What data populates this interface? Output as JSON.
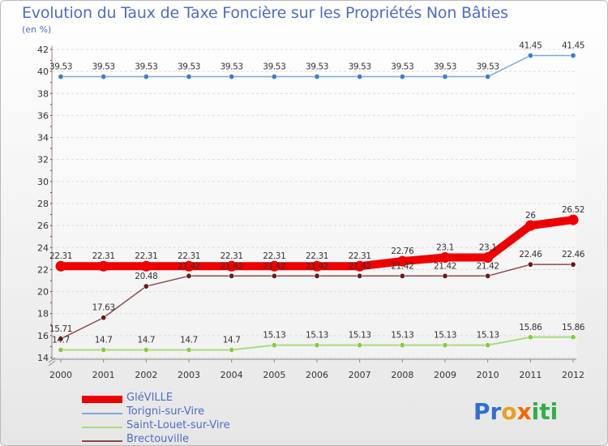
{
  "title": "Evolution du Taux de Taxe Foncière sur les Propriétés Non Bâties",
  "subtitle": "(en %)",
  "logo": {
    "letters": [
      "P",
      "r",
      "o",
      "x",
      "i",
      "t",
      "i"
    ],
    "colors": [
      "#2f6fd0",
      "#2f6fd0",
      "#e8a020",
      "#f06a00",
      "#2fb04a",
      "#2fb04a",
      "#2fb04a"
    ]
  },
  "chart_data": {
    "type": "line",
    "categories": [
      "2000",
      "2001",
      "2002",
      "2003",
      "2004",
      "2005",
      "2006",
      "2007",
      "2008",
      "2009",
      "2010",
      "2011",
      "2012"
    ],
    "ylim": [
      14,
      42
    ],
    "yticks": [
      14,
      16,
      18,
      20,
      22,
      24,
      26,
      28,
      30,
      32,
      34,
      36,
      38,
      40,
      42
    ],
    "xlabel": "",
    "ylabel": "(en %)",
    "grid": "horizontal",
    "series": [
      {
        "name": "GléVILLE",
        "color": "#ee0000",
        "markerColor": "#ee0000",
        "width": 10,
        "values": [
          22.31,
          22.31,
          22.31,
          22.31,
          22.31,
          22.31,
          22.31,
          22.31,
          22.76,
          23.1,
          23.1,
          26,
          26.52
        ],
        "labels": [
          "22.31",
          "22.31",
          "22.31",
          "22.31",
          "22.31",
          "22.31",
          "22.31",
          "22.31",
          "22.76",
          "23.1",
          "23.1",
          "26",
          "26.52"
        ]
      },
      {
        "name": "Torigni-sur-Vire",
        "color": "#7aaad8",
        "markerColor": "#3b7fc4",
        "width": 1.5,
        "values": [
          39.53,
          39.53,
          39.53,
          39.53,
          39.53,
          39.53,
          39.53,
          39.53,
          39.53,
          39.53,
          39.53,
          41.45,
          41.45
        ],
        "labels": [
          "39.53",
          "39.53",
          "39.53",
          "39.53",
          "39.53",
          "39.53",
          "39.53",
          "39.53",
          "39.53",
          "39.53",
          "39.53",
          "41.45",
          "41.45"
        ]
      },
      {
        "name": "Saint-Louet-sur-Vire",
        "color": "#a6dc7e",
        "markerColor": "#86cc3e",
        "width": 2,
        "values": [
          14.7,
          14.7,
          14.7,
          14.7,
          14.7,
          15.13,
          15.13,
          15.13,
          15.13,
          15.13,
          15.13,
          15.86,
          15.86
        ],
        "labels": [
          "14.7",
          "14.7",
          "14.7",
          "14.7",
          "14.7",
          "15.13",
          "15.13",
          "15.13",
          "15.13",
          "15.13",
          "15.13",
          "15.86",
          "15.86"
        ]
      },
      {
        "name": "Brectouville",
        "color": "#8a4a4a",
        "markerColor": "#6a1a1a",
        "width": 1.5,
        "values": [
          15.71,
          17.63,
          20.48,
          21.42,
          21.42,
          21.42,
          21.42,
          21.42,
          21.42,
          21.42,
          21.42,
          22.46,
          22.46
        ],
        "labels": [
          "15.71",
          "17.63",
          "20.48",
          "21.42",
          "21.42",
          "21.42",
          "21.42",
          "21.42",
          "21.42",
          "21.42",
          "21.42",
          "22.46",
          "22.46"
        ]
      }
    ]
  }
}
